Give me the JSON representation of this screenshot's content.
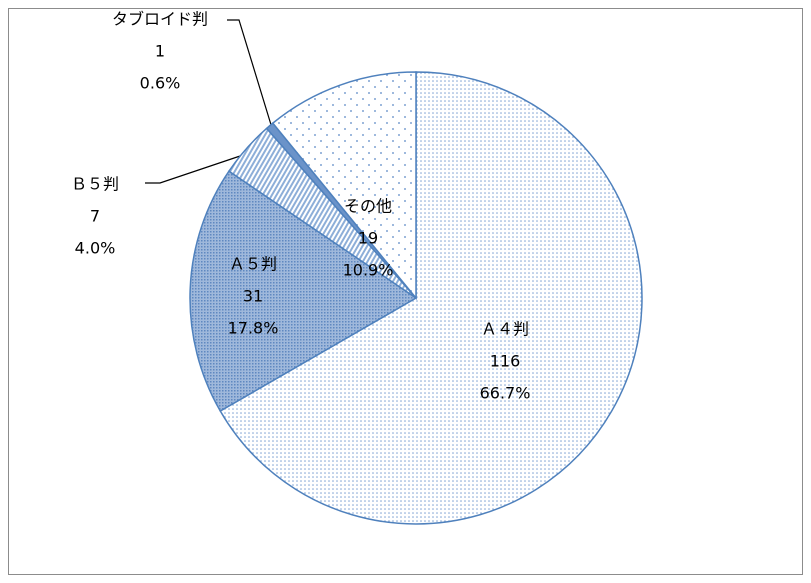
{
  "chart_data": {
    "type": "pie",
    "categories": [
      "Ａ４判",
      "Ａ５判",
      "Ｂ５判",
      "タブロイド判",
      "その他"
    ],
    "values": [
      116,
      31,
      7,
      1,
      19
    ],
    "percent_labels": [
      "66.7%",
      "17.8%",
      "4.0%",
      "0.6%",
      "10.9%"
    ],
    "colors": [
      "#4f81bd",
      "#4f81bd",
      "#4f81bd",
      "#4f81bd",
      "#4f81bd"
    ]
  }
}
